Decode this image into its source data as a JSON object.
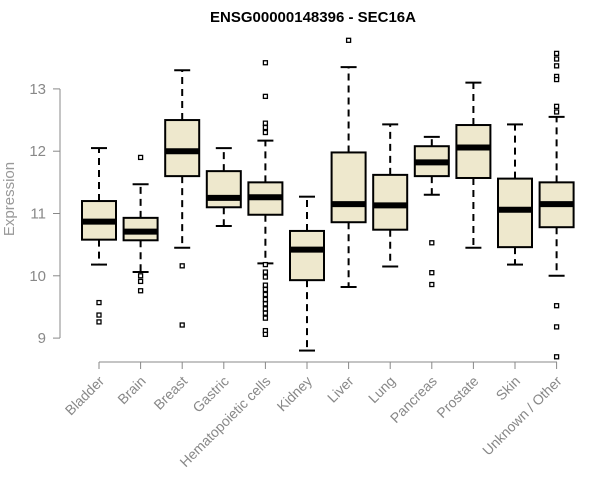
{
  "chart_data": {
    "type": "boxplot",
    "title": "ENSG00000148396 - SEC16A",
    "xlabel": "",
    "ylabel": "Expression",
    "ylim": [
      8.6,
      13.9
    ],
    "yticks": [
      9,
      10,
      11,
      12,
      13
    ],
    "grid": false,
    "colors": {
      "box_fill": "#EEE8CD",
      "stroke": "#000000",
      "axis": "#888888"
    },
    "categories": [
      "Bladder",
      "Brain",
      "Breast",
      "Gastric",
      "Hematopoietic cells",
      "Kidney",
      "Liver",
      "Lung",
      "Pancreas",
      "Prostate",
      "Skin",
      "Unknown / Other"
    ],
    "boxes": [
      {
        "label": "Bladder",
        "whisker_low": 10.18,
        "q1": 10.58,
        "median": 10.87,
        "q3": 11.2,
        "whisker_high": 12.05,
        "outliers": [
          9.57,
          9.37,
          9.26
        ]
      },
      {
        "label": "Brain",
        "whisker_low": 10.06,
        "q1": 10.57,
        "median": 10.71,
        "q3": 10.93,
        "whisker_high": 11.47,
        "outliers": [
          11.9,
          10.0,
          9.91,
          9.76
        ]
      },
      {
        "label": "Breast",
        "whisker_low": 10.45,
        "q1": 11.6,
        "median": 12.0,
        "q3": 12.5,
        "whisker_high": 13.3,
        "outliers": [
          10.16,
          9.21
        ]
      },
      {
        "label": "Gastric",
        "whisker_low": 10.8,
        "q1": 11.1,
        "median": 11.25,
        "q3": 11.68,
        "whisker_high": 12.05,
        "outliers": []
      },
      {
        "label": "Hematopoietic cells",
        "whisker_low": 10.2,
        "q1": 10.98,
        "median": 11.26,
        "q3": 11.5,
        "whisker_high": 12.17,
        "outliers": [
          13.42,
          12.88,
          12.45,
          12.38,
          12.3,
          10.18,
          10.06,
          9.98,
          9.85,
          9.78,
          9.7,
          9.62,
          9.55,
          9.47,
          9.4,
          9.32,
          9.12,
          9.06
        ]
      },
      {
        "label": "Kidney",
        "whisker_low": 8.8,
        "q1": 9.93,
        "median": 10.42,
        "q3": 10.72,
        "whisker_high": 11.27,
        "outliers": []
      },
      {
        "label": "Liver",
        "whisker_low": 9.82,
        "q1": 10.86,
        "median": 11.15,
        "q3": 11.98,
        "whisker_high": 13.35,
        "outliers": [
          13.78
        ]
      },
      {
        "label": "Lung",
        "whisker_low": 10.15,
        "q1": 10.74,
        "median": 11.13,
        "q3": 11.62,
        "whisker_high": 12.43,
        "outliers": []
      },
      {
        "label": "Pancreas",
        "whisker_low": 11.3,
        "q1": 11.6,
        "median": 11.82,
        "q3": 12.08,
        "whisker_high": 12.23,
        "outliers": [
          10.53,
          10.05,
          9.86
        ]
      },
      {
        "label": "Prostate",
        "whisker_low": 10.45,
        "q1": 11.57,
        "median": 12.06,
        "q3": 12.42,
        "whisker_high": 13.1,
        "outliers": []
      },
      {
        "label": "Skin",
        "whisker_low": 10.18,
        "q1": 10.46,
        "median": 11.06,
        "q3": 11.56,
        "whisker_high": 12.43,
        "outliers": []
      },
      {
        "label": "Unknown / Other",
        "whisker_low": 10.0,
        "q1": 10.78,
        "median": 11.15,
        "q3": 11.5,
        "whisker_high": 12.55,
        "outliers": [
          13.57,
          13.48,
          13.37,
          13.2,
          13.15,
          12.72,
          12.63,
          9.52,
          9.18,
          8.7
        ]
      }
    ]
  }
}
